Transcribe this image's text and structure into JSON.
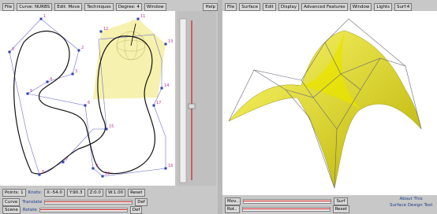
{
  "left_window": {
    "menu": [
      "File",
      "Curve: NURBS",
      "Edit: Move",
      "Techniques",
      "Degree: 4",
      "Window",
      "Help"
    ],
    "point_labels": [
      "0",
      "1",
      "2",
      "3",
      "4",
      "5",
      "6",
      "7",
      "8",
      "9",
      "10",
      "11",
      "12",
      "13",
      "14",
      "15",
      "16",
      "17"
    ],
    "controls": {
      "points": "Points: 1",
      "knots": "Knots:",
      "coords": [
        "X:-54.0",
        "Y:90.3",
        "Z:0.0",
        "W:1.00"
      ],
      "reset": "Reset",
      "rows": [
        {
          "label": "Curve",
          "action": "Translate",
          "button": "Def"
        },
        {
          "label": "Scene",
          "action": "Rotate",
          "button": "Def"
        }
      ]
    }
  },
  "right_window": {
    "menu": [
      "File",
      "Surface",
      "Edit",
      "Display",
      "Advanced Features",
      "Window",
      "Lights",
      "Surf:4"
    ],
    "controls": {
      "rows": [
        {
          "label": "Mov..",
          "button": "Surf"
        },
        {
          "label": "Rot..",
          "button": "Reset"
        }
      ],
      "about": [
        "About This",
        "Surface Design Tool"
      ]
    }
  }
}
